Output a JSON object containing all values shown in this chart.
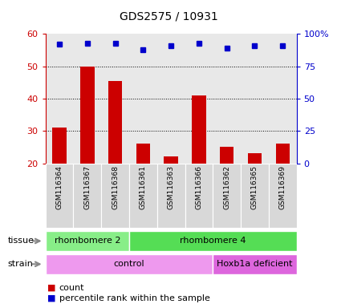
{
  "title": "GDS2575 / 10931",
  "samples": [
    "GSM116364",
    "GSM116367",
    "GSM116368",
    "GSM116361",
    "GSM116363",
    "GSM116366",
    "GSM116362",
    "GSM116365",
    "GSM116369"
  ],
  "counts": [
    31,
    50,
    45.5,
    26,
    22,
    41,
    25,
    23,
    26
  ],
  "percentile_ranks": [
    92,
    93,
    93,
    88,
    91,
    93,
    89,
    91,
    91
  ],
  "ylim_left": [
    20,
    60
  ],
  "ylim_right": [
    0,
    100
  ],
  "yticks_left": [
    20,
    30,
    40,
    50,
    60
  ],
  "yticks_right": [
    0,
    25,
    50,
    75,
    100
  ],
  "ytick_labels_right": [
    "0",
    "25",
    "50",
    "75",
    "100%"
  ],
  "bar_color": "#cc0000",
  "point_color": "#0000cc",
  "tissue_groups": [
    {
      "label": "rhombomere 2",
      "start": 0,
      "end": 3,
      "color": "#88ee88"
    },
    {
      "label": "rhombomere 4",
      "start": 3,
      "end": 9,
      "color": "#55dd55"
    }
  ],
  "strain_groups": [
    {
      "label": "control",
      "start": 0,
      "end": 6,
      "color": "#ee99ee"
    },
    {
      "label": "Hoxb1a deficient",
      "start": 6,
      "end": 9,
      "color": "#dd66dd"
    }
  ],
  "tissue_label": "tissue",
  "strain_label": "strain",
  "legend_count": "count",
  "legend_pct": "percentile rank within the sample",
  "bg_color": "#ffffff",
  "plot_bg": "#e8e8e8",
  "bar_bg": "#d8d8d8",
  "grid_color": "#000000",
  "tick_color_left": "#cc0000",
  "tick_color_right": "#0000cc"
}
